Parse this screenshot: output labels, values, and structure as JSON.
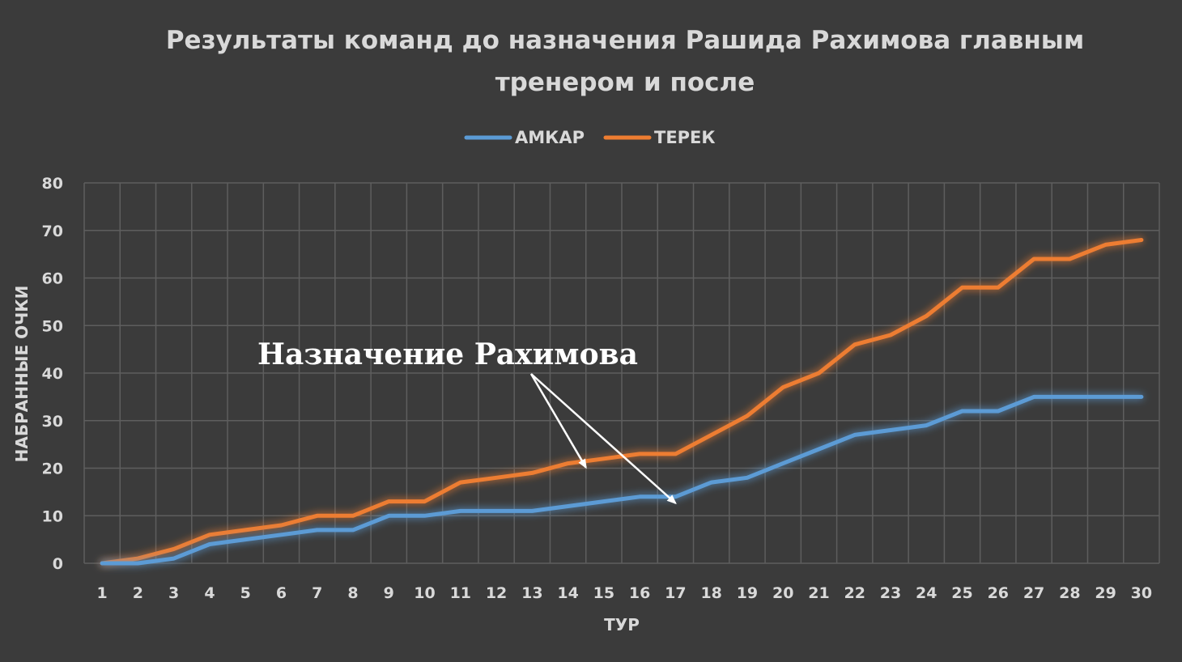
{
  "chart_data": {
    "type": "line",
    "title_line1": "Результаты команд до назначения Рашида Рахимова главным",
    "title_line2": "тренером и после",
    "xlabel": "ТУР",
    "ylabel": "НАБРАННЫЕ ОЧКИ",
    "ylim": [
      0,
      80
    ],
    "yticks": [
      0,
      10,
      20,
      30,
      40,
      50,
      60,
      70,
      80
    ],
    "grid": true,
    "legend_position": "top-center",
    "x": [
      1,
      2,
      3,
      4,
      5,
      6,
      7,
      8,
      9,
      10,
      11,
      12,
      13,
      14,
      15,
      16,
      17,
      18,
      19,
      20,
      21,
      22,
      23,
      24,
      25,
      26,
      27,
      28,
      29,
      30
    ],
    "series": [
      {
        "name": "АМКАР",
        "color": "#5b9bd5",
        "values": [
          0,
          0,
          1,
          4,
          5,
          6,
          7,
          7,
          10,
          10,
          11,
          11,
          11,
          12,
          13,
          14,
          14,
          17,
          18,
          21,
          24,
          27,
          28,
          29,
          32,
          32,
          35,
          35,
          35,
          35
        ]
      },
      {
        "name": "ТЕРЕК",
        "color": "#ed7d31",
        "values": [
          0,
          1,
          3,
          6,
          7,
          8,
          10,
          10,
          13,
          13,
          17,
          18,
          19,
          21,
          22,
          23,
          23,
          27,
          31,
          37,
          40,
          46,
          48,
          52,
          58,
          58,
          64,
          64,
          67,
          68
        ]
      }
    ],
    "annotation": {
      "text": "Назначение Рахимова",
      "arrow_targets": [
        {
          "series": "ТЕРЕК",
          "x": 14.5
        },
        {
          "series": "АМКАР",
          "x": 17
        }
      ]
    }
  }
}
